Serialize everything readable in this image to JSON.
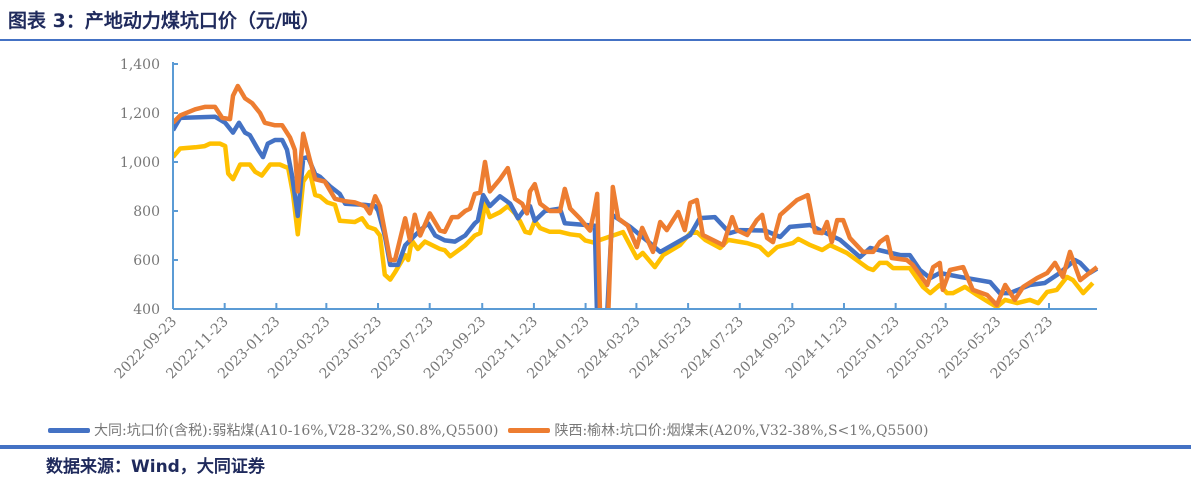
{
  "header": {
    "title": "图表 3：产地动力煤坑口价（元/吨）"
  },
  "footer": {
    "source": "数据来源：Wind，大同证券"
  },
  "chart_data": {
    "type": "line",
    "title": "产地动力煤坑口价（元/吨）",
    "x_unit": "weeks since 2022-09-23",
    "xlabel": "",
    "ylabel": "",
    "ylim": [
      400,
      1400
    ],
    "yticks": [
      400,
      600,
      800,
      1000,
      1200,
      1400
    ],
    "ytick_labels": [
      "400",
      "600",
      "800",
      "1,000",
      "1,200",
      "1,400"
    ],
    "xtick_labels": [
      "2022-09-23",
      "2022-11-23",
      "2023-01-23",
      "2023-03-23",
      "2023-05-23",
      "2023-07-23",
      "2023-09-23",
      "2023-11-23",
      "2024-01-23",
      "2024-03-23",
      "2024-05-23",
      "2024-07-23",
      "2024-09-23",
      "2024-11-23",
      "2025-01-23",
      "2025-03-23",
      "2025-05-23",
      "2025-07-23"
    ],
    "legend_position": "bottom",
    "grid": false,
    "series": [
      {
        "name": "大同:坑口价(含税):弱粘煤(A10-16%,V28-32%,S0.8%,Q5500)",
        "color": "#4472C4",
        "points": [
          [
            0,
            1130
          ],
          [
            1.2,
            1180
          ],
          [
            7,
            1185
          ],
          [
            8.7,
            1160
          ],
          [
            10,
            1120
          ],
          [
            11,
            1160
          ],
          [
            12,
            1120
          ],
          [
            12.8,
            1110
          ],
          [
            14.2,
            1050
          ],
          [
            15,
            1020
          ],
          [
            15.8,
            1075
          ],
          [
            17,
            1090
          ],
          [
            18.2,
            1090
          ],
          [
            19,
            1050
          ],
          [
            19.8,
            950
          ],
          [
            20.8,
            780
          ],
          [
            21.7,
            1015
          ],
          [
            22.5,
            1020
          ],
          [
            23.7,
            950
          ],
          [
            24.5,
            940
          ],
          [
            26.2,
            900
          ],
          [
            27.8,
            870
          ],
          [
            28.7,
            830
          ],
          [
            32,
            825
          ],
          [
            33.7,
            820
          ],
          [
            34.2,
            800
          ],
          [
            35.3,
            700
          ],
          [
            36.2,
            580
          ],
          [
            37.5,
            580
          ],
          [
            38.7,
            660
          ],
          [
            40.3,
            700
          ],
          [
            42.5,
            750
          ],
          [
            43.7,
            700
          ],
          [
            45.3,
            680
          ],
          [
            47,
            675
          ],
          [
            48.7,
            700
          ],
          [
            50.3,
            750
          ],
          [
            50.8,
            760
          ],
          [
            51.7,
            865
          ],
          [
            52.8,
            820
          ],
          [
            54.5,
            860
          ],
          [
            56.2,
            830
          ],
          [
            57.5,
            770
          ],
          [
            58.7,
            810
          ],
          [
            59.5,
            820
          ],
          [
            60.3,
            760
          ],
          [
            62,
            800
          ],
          [
            64.5,
            810
          ],
          [
            65.3,
            750
          ],
          [
            67.8,
            745
          ],
          [
            70.3,
            740
          ],
          [
            70.7,
            350
          ],
          [
            72.3,
            350
          ],
          [
            73.2,
            784
          ],
          [
            76.2,
            735
          ],
          [
            79.5,
            669
          ],
          [
            81.2,
            633
          ],
          [
            86.2,
            702
          ],
          [
            87.8,
            771
          ],
          [
            90.3,
            775
          ],
          [
            92.8,
            710
          ],
          [
            94.5,
            722
          ],
          [
            98.7,
            720
          ],
          [
            101.2,
            694
          ],
          [
            102.8,
            735
          ],
          [
            106.2,
            743
          ],
          [
            107.8,
            722
          ],
          [
            111.2,
            682
          ],
          [
            114.5,
            612
          ],
          [
            116.2,
            649
          ],
          [
            121.2,
            620
          ],
          [
            122.8,
            620
          ],
          [
            124.5,
            559
          ],
          [
            126.2,
            526
          ],
          [
            127.8,
            547
          ],
          [
            131.2,
            531
          ],
          [
            136.2,
            510
          ],
          [
            137.8,
            465
          ],
          [
            139.5,
            465
          ],
          [
            142.8,
            498
          ],
          [
            145.3,
            506
          ],
          [
            147.8,
            547
          ],
          [
            150.3,
            600
          ],
          [
            151.2,
            588
          ],
          [
            152.8,
            547
          ],
          [
            154,
            565
          ]
        ]
      },
      {
        "name": "陕西:榆林:坑口价:烟煤末(A20%,V32-38%,S<1%,Q5500)",
        "color": "#ED7D31",
        "points": [
          [
            0,
            1160
          ],
          [
            1.2,
            1190
          ],
          [
            3.7,
            1215
          ],
          [
            5.3,
            1225
          ],
          [
            7,
            1225
          ],
          [
            8.2,
            1180
          ],
          [
            9.5,
            1175
          ],
          [
            10,
            1270
          ],
          [
            10.8,
            1310
          ],
          [
            12,
            1260
          ],
          [
            13.2,
            1240
          ],
          [
            14.5,
            1200
          ],
          [
            15.3,
            1160
          ],
          [
            17,
            1150
          ],
          [
            18.2,
            1150
          ],
          [
            19.5,
            1100
          ],
          [
            20.3,
            1050
          ],
          [
            20.8,
            880
          ],
          [
            21.7,
            1115
          ],
          [
            22.8,
            1010
          ],
          [
            23.7,
            930
          ],
          [
            25.3,
            920
          ],
          [
            27,
            850
          ],
          [
            28.7,
            840
          ],
          [
            30.3,
            835
          ],
          [
            32,
            820
          ],
          [
            32.8,
            790
          ],
          [
            33.7,
            860
          ],
          [
            34.5,
            820
          ],
          [
            36.2,
            600
          ],
          [
            37,
            600
          ],
          [
            38.7,
            770
          ],
          [
            39.5,
            680
          ],
          [
            40.3,
            785
          ],
          [
            41.2,
            700
          ],
          [
            42.8,
            790
          ],
          [
            44.5,
            720
          ],
          [
            45.3,
            715
          ],
          [
            46.5,
            775
          ],
          [
            47.5,
            775
          ],
          [
            48.7,
            800
          ],
          [
            49.5,
            810
          ],
          [
            50.3,
            870
          ],
          [
            51.2,
            875
          ],
          [
            52,
            1000
          ],
          [
            52.8,
            880
          ],
          [
            54.5,
            930
          ],
          [
            55.8,
            975
          ],
          [
            57,
            850
          ],
          [
            58.2,
            830
          ],
          [
            59,
            790
          ],
          [
            59.5,
            880
          ],
          [
            60.3,
            910
          ],
          [
            61.2,
            830
          ],
          [
            62.8,
            800
          ],
          [
            64.5,
            800
          ],
          [
            65.3,
            890
          ],
          [
            66.2,
            810
          ],
          [
            67.8,
            770
          ],
          [
            69.5,
            720
          ],
          [
            70.2,
            800
          ],
          [
            70.7,
            870
          ],
          [
            71.2,
            350
          ],
          [
            72.5,
            350
          ],
          [
            73.3,
            898
          ],
          [
            74.2,
            770
          ],
          [
            75.8,
            740
          ],
          [
            77.3,
            653
          ],
          [
            78.2,
            731
          ],
          [
            80,
            633
          ],
          [
            81.2,
            755
          ],
          [
            82.3,
            722
          ],
          [
            84.2,
            796
          ],
          [
            85.3,
            722
          ],
          [
            86.2,
            833
          ],
          [
            87.3,
            845
          ],
          [
            88.3,
            702
          ],
          [
            91.7,
            661
          ],
          [
            93.2,
            775
          ],
          [
            94,
            722
          ],
          [
            95.7,
            702
          ],
          [
            97.3,
            763
          ],
          [
            98.2,
            784
          ],
          [
            99,
            690
          ],
          [
            100,
            673
          ],
          [
            101.2,
            784
          ],
          [
            104,
            845
          ],
          [
            105.8,
            865
          ],
          [
            107,
            714
          ],
          [
            108.2,
            710
          ],
          [
            109,
            755
          ],
          [
            109.8,
            673
          ],
          [
            110.7,
            763
          ],
          [
            111.7,
            763
          ],
          [
            112.8,
            690
          ],
          [
            115,
            633
          ],
          [
            116.7,
            633
          ],
          [
            117.8,
            673
          ],
          [
            119,
            694
          ],
          [
            119.8,
            608
          ],
          [
            122.3,
            600
          ],
          [
            123.3,
            580
          ],
          [
            125.7,
            498
          ],
          [
            126.7,
            571
          ],
          [
            127.8,
            588
          ],
          [
            128.3,
            478
          ],
          [
            129.5,
            559
          ],
          [
            131.7,
            571
          ],
          [
            133.3,
            478
          ],
          [
            135.7,
            457
          ],
          [
            137.3,
            416
          ],
          [
            138.7,
            498
          ],
          [
            140.3,
            437
          ],
          [
            141.7,
            490
          ],
          [
            144,
            526
          ],
          [
            145.7,
            547
          ],
          [
            147,
            588
          ],
          [
            148.3,
            531
          ],
          [
            149.5,
            633
          ],
          [
            151.2,
            518
          ],
          [
            154,
            571
          ]
        ]
      },
      {
        "name": "",
        "color": "#FFC000",
        "points": [
          [
            0,
            1020
          ],
          [
            1.2,
            1055
          ],
          [
            3.7,
            1060
          ],
          [
            5.3,
            1065
          ],
          [
            6.2,
            1075
          ],
          [
            7.8,
            1075
          ],
          [
            8.7,
            1065
          ],
          [
            9.2,
            953
          ],
          [
            10,
            930
          ],
          [
            11.2,
            990
          ],
          [
            12.8,
            990
          ],
          [
            13.7,
            960
          ],
          [
            14.8,
            945
          ],
          [
            16.2,
            990
          ],
          [
            17.8,
            990
          ],
          [
            19.2,
            975
          ],
          [
            20,
            870
          ],
          [
            20.8,
            705
          ],
          [
            21.7,
            920
          ],
          [
            22.8,
            960
          ],
          [
            23.7,
            865
          ],
          [
            24.5,
            860
          ],
          [
            25.7,
            835
          ],
          [
            27,
            825
          ],
          [
            27.8,
            760
          ],
          [
            30.3,
            755
          ],
          [
            31.5,
            770
          ],
          [
            32.5,
            735
          ],
          [
            33.7,
            725
          ],
          [
            34.5,
            700
          ],
          [
            35.3,
            540
          ],
          [
            36.2,
            520
          ],
          [
            37,
            550
          ],
          [
            38.7,
            620
          ],
          [
            39.2,
            600
          ],
          [
            39.8,
            680
          ],
          [
            40.8,
            645
          ],
          [
            42,
            675
          ],
          [
            44.5,
            645
          ],
          [
            45.3,
            640
          ],
          [
            46.2,
            615
          ],
          [
            48.7,
            660
          ],
          [
            50.3,
            700
          ],
          [
            51.2,
            710
          ],
          [
            52,
            830
          ],
          [
            52.8,
            775
          ],
          [
            54.5,
            795
          ],
          [
            55.8,
            820
          ],
          [
            57,
            790
          ],
          [
            57.8,
            760
          ],
          [
            58.7,
            715
          ],
          [
            59.5,
            710
          ],
          [
            60.3,
            760
          ],
          [
            61.2,
            730
          ],
          [
            62.8,
            715
          ],
          [
            64.5,
            715
          ],
          [
            66.2,
            705
          ],
          [
            67.8,
            700
          ],
          [
            68.7,
            680
          ],
          [
            70.3,
            670
          ],
          [
            71.2,
            682
          ],
          [
            75,
            714
          ],
          [
            77.3,
            608
          ],
          [
            78.3,
            629
          ],
          [
            80.3,
            571
          ],
          [
            81.7,
            620
          ],
          [
            84.5,
            661
          ],
          [
            86.2,
            710
          ],
          [
            87.3,
            714
          ],
          [
            88.7,
            682
          ],
          [
            91.2,
            649
          ],
          [
            92.5,
            682
          ],
          [
            95.7,
            669
          ],
          [
            97.8,
            653
          ],
          [
            99.2,
            620
          ],
          [
            100.7,
            653
          ],
          [
            103.3,
            669
          ],
          [
            104.2,
            686
          ],
          [
            106.2,
            661
          ],
          [
            108.2,
            641
          ],
          [
            109.5,
            661
          ],
          [
            112.3,
            629
          ],
          [
            115.8,
            567
          ],
          [
            116.7,
            559
          ],
          [
            117.8,
            588
          ],
          [
            119,
            588
          ],
          [
            120,
            567
          ],
          [
            122.8,
            567
          ],
          [
            125,
            490
          ],
          [
            126.2,
            465
          ],
          [
            127.8,
            498
          ],
          [
            129,
            465
          ],
          [
            130,
            465
          ],
          [
            132,
            490
          ],
          [
            134,
            457
          ],
          [
            136.2,
            424
          ],
          [
            137.3,
            408
          ],
          [
            138.7,
            437
          ],
          [
            140.7,
            424
          ],
          [
            142.8,
            437
          ],
          [
            144.2,
            424
          ],
          [
            145.7,
            470
          ],
          [
            147.3,
            478
          ],
          [
            149,
            531
          ],
          [
            150,
            518
          ],
          [
            151.7,
            465
          ],
          [
            153.3,
            506
          ]
        ]
      }
    ]
  }
}
